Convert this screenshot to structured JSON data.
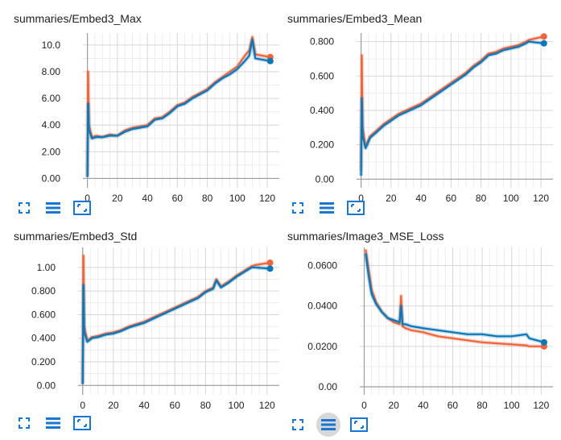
{
  "colors": {
    "run_a": "#f0643c",
    "run_b": "#0a77b7",
    "grid": "#d6d6d6",
    "axis": "#9e9e9e",
    "icon": "#1976d2"
  },
  "toolbar_icons": [
    "fit-to-data-icon",
    "data-table-icon",
    "expand-chart-icon"
  ],
  "chart_data": [
    {
      "type": "line",
      "title": "summaries/Embed3_Max",
      "xlabel": "",
      "ylabel": "",
      "xlim": [
        -3,
        128
      ],
      "ylim": [
        -0.7,
        10.9
      ],
      "x_ticks": [
        0,
        20,
        40,
        60,
        80,
        100,
        120
      ],
      "x_tick_labels": [
        "0",
        "20",
        "40",
        "60",
        "80",
        "100",
        "120"
      ],
      "y_ticks": [
        0,
        2,
        4,
        6,
        8,
        10
      ],
      "y_tick_labels": [
        "0.00",
        "2.00",
        "4.00",
        "6.00",
        "8.00",
        "10.0"
      ],
      "series": [
        {
          "color": "#f0643c",
          "x": [
            0,
            0.5,
            1,
            3,
            6,
            10,
            15,
            20,
            25,
            30,
            35,
            40,
            45,
            50,
            55,
            60,
            65,
            70,
            75,
            80,
            85,
            90,
            95,
            100,
            105,
            108,
            110,
            112,
            122
          ],
          "y": [
            0.2,
            8.0,
            4.0,
            3.1,
            3.2,
            3.1,
            3.3,
            3.2,
            3.6,
            3.8,
            3.9,
            4.0,
            4.5,
            4.6,
            5.0,
            5.5,
            5.7,
            6.1,
            6.4,
            6.7,
            7.2,
            7.6,
            8.0,
            8.4,
            9.2,
            9.6,
            10.6,
            9.3,
            9.1
          ]
        },
        {
          "color": "#0a77b7",
          "x": [
            0,
            0.5,
            1,
            3,
            6,
            10,
            15,
            20,
            25,
            30,
            35,
            40,
            45,
            50,
            55,
            60,
            65,
            70,
            75,
            80,
            85,
            90,
            95,
            100,
            105,
            108,
            110,
            112,
            122
          ],
          "y": [
            0.1,
            5.6,
            3.6,
            3.0,
            3.1,
            3.1,
            3.2,
            3.2,
            3.5,
            3.7,
            3.8,
            3.9,
            4.4,
            4.5,
            4.9,
            5.4,
            5.6,
            6.0,
            6.3,
            6.6,
            7.1,
            7.5,
            7.8,
            8.2,
            8.8,
            9.2,
            10.4,
            9.0,
            8.8
          ]
        }
      ]
    },
    {
      "type": "line",
      "title": "summaries/Embed3_Mean",
      "xlabel": "",
      "ylabel": "",
      "xlim": [
        -3,
        128
      ],
      "ylim": [
        -0.05,
        0.85
      ],
      "x_ticks": [
        0,
        20,
        40,
        60,
        80,
        100,
        120
      ],
      "x_tick_labels": [
        "0",
        "20",
        "40",
        "60",
        "80",
        "100",
        "120"
      ],
      "y_ticks": [
        0,
        0.2,
        0.4,
        0.6,
        0.8
      ],
      "y_tick_labels": [
        "0.00",
        "0.200",
        "0.400",
        "0.600",
        "0.800"
      ],
      "series": [
        {
          "color": "#f0643c",
          "x": [
            0,
            0.5,
            1,
            3,
            6,
            10,
            15,
            20,
            25,
            30,
            35,
            40,
            45,
            50,
            55,
            60,
            65,
            70,
            75,
            80,
            85,
            90,
            95,
            100,
            105,
            110,
            112,
            122
          ],
          "y": [
            0.05,
            0.72,
            0.3,
            0.19,
            0.25,
            0.28,
            0.32,
            0.35,
            0.38,
            0.4,
            0.42,
            0.44,
            0.47,
            0.5,
            0.53,
            0.56,
            0.59,
            0.62,
            0.66,
            0.69,
            0.73,
            0.74,
            0.76,
            0.77,
            0.78,
            0.8,
            0.81,
            0.83
          ]
        },
        {
          "color": "#0a77b7",
          "x": [
            0,
            0.5,
            1,
            3,
            6,
            10,
            15,
            20,
            25,
            30,
            35,
            40,
            45,
            50,
            55,
            60,
            65,
            70,
            75,
            80,
            85,
            90,
            95,
            100,
            105,
            110,
            112,
            122
          ],
          "y": [
            0.02,
            0.47,
            0.25,
            0.18,
            0.24,
            0.27,
            0.31,
            0.34,
            0.37,
            0.39,
            0.41,
            0.43,
            0.46,
            0.49,
            0.52,
            0.55,
            0.58,
            0.61,
            0.65,
            0.68,
            0.72,
            0.73,
            0.75,
            0.76,
            0.77,
            0.79,
            0.8,
            0.79
          ]
        }
      ]
    },
    {
      "type": "line",
      "title": "summaries/Embed3_Std",
      "xlabel": "",
      "ylabel": "",
      "xlim": [
        -3,
        128
      ],
      "ylim": [
        -0.08,
        1.17
      ],
      "x_ticks": [
        0,
        20,
        40,
        60,
        80,
        100,
        120
      ],
      "x_tick_labels": [
        "0",
        "20",
        "40",
        "60",
        "80",
        "100",
        "120"
      ],
      "y_ticks": [
        0,
        0.2,
        0.4,
        0.6,
        0.8,
        1.0
      ],
      "y_tick_labels": [
        "0.00",
        "0.200",
        "0.400",
        "0.600",
        "0.800",
        "1.00"
      ],
      "series": [
        {
          "color": "#f0643c",
          "x": [
            0,
            0.5,
            1,
            3,
            6,
            10,
            15,
            20,
            25,
            30,
            35,
            40,
            45,
            50,
            55,
            60,
            65,
            70,
            75,
            80,
            85,
            87,
            90,
            95,
            100,
            105,
            110,
            112,
            122
          ],
          "y": [
            0.02,
            1.1,
            0.5,
            0.38,
            0.41,
            0.42,
            0.44,
            0.45,
            0.47,
            0.5,
            0.52,
            0.54,
            0.57,
            0.6,
            0.63,
            0.66,
            0.69,
            0.72,
            0.75,
            0.8,
            0.83,
            0.9,
            0.84,
            0.88,
            0.93,
            0.97,
            1.01,
            1.02,
            1.04
          ]
        },
        {
          "color": "#0a77b7",
          "x": [
            0,
            0.5,
            1,
            3,
            6,
            10,
            15,
            20,
            25,
            30,
            35,
            40,
            45,
            50,
            55,
            60,
            65,
            70,
            75,
            80,
            85,
            87,
            90,
            95,
            100,
            105,
            110,
            112,
            122
          ],
          "y": [
            0.01,
            0.85,
            0.45,
            0.37,
            0.4,
            0.41,
            0.43,
            0.44,
            0.46,
            0.49,
            0.51,
            0.53,
            0.56,
            0.59,
            0.62,
            0.65,
            0.68,
            0.71,
            0.74,
            0.79,
            0.82,
            0.89,
            0.83,
            0.87,
            0.92,
            0.96,
            1.0,
            1.0,
            0.99
          ]
        }
      ]
    },
    {
      "type": "line",
      "title": "summaries/Image3_MSE_Loss",
      "xlabel": "",
      "ylabel": "",
      "xlim": [
        -3,
        128
      ],
      "ylim": [
        -0.004,
        0.069
      ],
      "x_ticks": [
        0,
        20,
        40,
        60,
        80,
        100,
        120
      ],
      "x_tick_labels": [
        "0",
        "20",
        "40",
        "60",
        "80",
        "100",
        "120"
      ],
      "y_ticks": [
        0,
        0.02,
        0.04,
        0.06
      ],
      "y_tick_labels": [
        "0.00",
        "0.0200",
        "0.0400",
        "0.0600"
      ],
      "series": [
        {
          "color": "#f0643c",
          "x": [
            1,
            3,
            5,
            8,
            12,
            16,
            20,
            24,
            25,
            26,
            28,
            32,
            40,
            50,
            60,
            70,
            80,
            90,
            100,
            110,
            112,
            122
          ],
          "y": [
            0.068,
            0.058,
            0.048,
            0.042,
            0.037,
            0.034,
            0.032,
            0.031,
            0.045,
            0.03,
            0.029,
            0.028,
            0.027,
            0.025,
            0.024,
            0.023,
            0.022,
            0.0215,
            0.021,
            0.0205,
            0.02,
            0.02
          ]
        },
        {
          "color": "#0a77b7",
          "x": [
            1,
            3,
            5,
            8,
            12,
            16,
            20,
            24,
            25,
            26,
            28,
            32,
            40,
            50,
            60,
            70,
            80,
            90,
            100,
            110,
            112,
            122
          ],
          "y": [
            0.066,
            0.055,
            0.046,
            0.041,
            0.037,
            0.034,
            0.033,
            0.032,
            0.04,
            0.031,
            0.031,
            0.03,
            0.029,
            0.028,
            0.027,
            0.026,
            0.026,
            0.025,
            0.025,
            0.026,
            0.024,
            0.022
          ]
        }
      ]
    }
  ]
}
